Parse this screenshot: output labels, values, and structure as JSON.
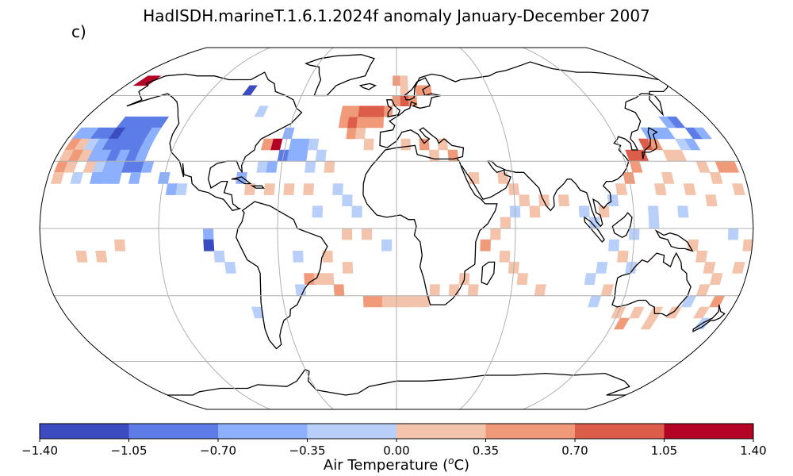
{
  "title": "HadISDH.marineT.1.6.1.2024f anomaly January-December 2007",
  "panel_label": "c)",
  "colorbar": {
    "label_main": "Air Temperature (",
    "label_sup": "o",
    "label_unit": "C)",
    "ticks": [
      "−1.40",
      "−1.05",
      "−0.70",
      "−0.35",
      "0.00",
      "0.35",
      "0.70",
      "1.05",
      "1.40"
    ],
    "tick_values": [
      -1.4,
      -1.05,
      -0.7,
      -0.35,
      0.0,
      0.35,
      0.7,
      1.05,
      1.4
    ],
    "bins": [
      {
        "lo": -1.4,
        "hi": -1.05,
        "color": "#3b4cc0"
      },
      {
        "lo": -1.05,
        "hi": -0.7,
        "color": "#5d7ce6"
      },
      {
        "lo": -0.7,
        "hi": -0.35,
        "color": "#8caffe"
      },
      {
        "lo": -0.35,
        "hi": 0.0,
        "color": "#b8d0f9"
      },
      {
        "lo": 0.0,
        "hi": 0.35,
        "color": "#f4c3ab"
      },
      {
        "lo": 0.35,
        "hi": 0.7,
        "color": "#f09a7a"
      },
      {
        "lo": 0.7,
        "hi": 1.05,
        "color": "#dc5d4a"
      },
      {
        "lo": 1.05,
        "hi": 1.4,
        "color": "#b40426"
      }
    ]
  },
  "projection": "Robinson",
  "graticule": {
    "lon_step": 60,
    "lat_step": 30
  },
  "anomaly_cells": [
    {
      "lon": -155,
      "lat": 47.5,
      "v": -0.9
    },
    {
      "lon": -150,
      "lat": 47.5,
      "v": -1.0
    },
    {
      "lon": -145,
      "lat": 47.5,
      "v": -1.0
    },
    {
      "lon": -140,
      "lat": 47.5,
      "v": -0.9
    },
    {
      "lon": -135,
      "lat": 47.5,
      "v": -0.8
    },
    {
      "lon": -175,
      "lat": 42.5,
      "v": -0.6
    },
    {
      "lon": -170,
      "lat": 42.5,
      "v": -0.7
    },
    {
      "lon": -165,
      "lat": 42.5,
      "v": -0.8
    },
    {
      "lon": -160,
      "lat": 42.5,
      "v": -0.9
    },
    {
      "lon": -155,
      "lat": 42.5,
      "v": -1.2
    },
    {
      "lon": -150,
      "lat": 42.5,
      "v": -1.0
    },
    {
      "lon": -145,
      "lat": 42.5,
      "v": -0.9
    },
    {
      "lon": -140,
      "lat": 42.5,
      "v": -0.8
    },
    {
      "lon": -135,
      "lat": 42.5,
      "v": -0.7
    },
    {
      "lon": -175,
      "lat": 37.5,
      "v": 0.4
    },
    {
      "lon": -170,
      "lat": 37.5,
      "v": 0.3
    },
    {
      "lon": -165,
      "lat": 37.5,
      "v": -0.3
    },
    {
      "lon": -160,
      "lat": 37.5,
      "v": -0.6
    },
    {
      "lon": -155,
      "lat": 37.5,
      "v": -0.9
    },
    {
      "lon": -150,
      "lat": 37.5,
      "v": -0.8
    },
    {
      "lon": -145,
      "lat": 37.5,
      "v": -0.9
    },
    {
      "lon": -140,
      "lat": 37.5,
      "v": -0.8
    },
    {
      "lon": -135,
      "lat": 37.5,
      "v": -0.6
    },
    {
      "lon": -175,
      "lat": 32.5,
      "v": 0.3
    },
    {
      "lon": -170,
      "lat": 32.5,
      "v": 0.4
    },
    {
      "lon": -165,
      "lat": 32.5,
      "v": 0.2
    },
    {
      "lon": -160,
      "lat": 32.5,
      "v": -0.4
    },
    {
      "lon": -155,
      "lat": 32.5,
      "v": -0.6
    },
    {
      "lon": -150,
      "lat": 32.5,
      "v": -0.8
    },
    {
      "lon": -145,
      "lat": 32.5,
      "v": -0.7
    },
    {
      "lon": -140,
      "lat": 32.5,
      "v": -0.9
    },
    {
      "lon": -135,
      "lat": 32.5,
      "v": -0.6
    },
    {
      "lon": -175,
      "lat": 27.5,
      "v": 0.5
    },
    {
      "lon": -170,
      "lat": 27.5,
      "v": 0.3
    },
    {
      "lon": -160,
      "lat": 27.5,
      "v": 0.2
    },
    {
      "lon": -155,
      "lat": 27.5,
      "v": -0.3
    },
    {
      "lon": -150,
      "lat": 27.5,
      "v": -0.5
    },
    {
      "lon": -145,
      "lat": 27.5,
      "v": -0.6
    },
    {
      "lon": -140,
      "lat": 27.5,
      "v": -0.9
    },
    {
      "lon": -135,
      "lat": 27.5,
      "v": -0.8
    },
    {
      "lon": -130,
      "lat": 27.5,
      "v": -0.5
    },
    {
      "lon": -175,
      "lat": 22.5,
      "v": 0.2
    },
    {
      "lon": -165,
      "lat": 22.5,
      "v": -0.2
    },
    {
      "lon": -155,
      "lat": 22.5,
      "v": -0.4
    },
    {
      "lon": -150,
      "lat": 22.5,
      "v": -0.5
    },
    {
      "lon": -145,
      "lat": 22.5,
      "v": -0.6
    },
    {
      "lon": -135,
      "lat": 22.5,
      "v": -0.5
    },
    {
      "lon": -120,
      "lat": 22.5,
      "v": -0.5
    },
    {
      "lon": -115,
      "lat": 17.5,
      "v": -0.4
    },
    {
      "lon": -110,
      "lat": 17.5,
      "v": -0.2
    },
    {
      "lon": -95,
      "lat": -2.5,
      "v": -0.6
    },
    {
      "lon": -95,
      "lat": -7.5,
      "v": -1.2
    },
    {
      "lon": -90,
      "lat": -12.5,
      "v": -0.3
    },
    {
      "lon": -85,
      "lat": -17.5,
      "v": -0.2
    },
    {
      "lon": -65,
      "lat": 37.5,
      "v": 1.2
    },
    {
      "lon": -70,
      "lat": 37.5,
      "v": 0.4
    },
    {
      "lon": -60,
      "lat": 42.5,
      "v": -0.6
    },
    {
      "lon": -55,
      "lat": 37.5,
      "v": -0.7
    },
    {
      "lon": -50,
      "lat": 37.5,
      "v": -0.6
    },
    {
      "lon": -45,
      "lat": 37.5,
      "v": -0.3
    },
    {
      "lon": -60,
      "lat": 32.5,
      "v": -0.8
    },
    {
      "lon": -55,
      "lat": 32.5,
      "v": -0.6
    },
    {
      "lon": -50,
      "lat": 32.5,
      "v": -0.4
    },
    {
      "lon": -40,
      "lat": 32.5,
      "v": -0.3
    },
    {
      "lon": -70,
      "lat": 27.5,
      "v": -0.3
    },
    {
      "lon": -65,
      "lat": 27.5,
      "v": -0.5
    },
    {
      "lon": -45,
      "lat": 27.5,
      "v": -0.2
    },
    {
      "lon": -35,
      "lat": 27.5,
      "v": 0.2
    },
    {
      "lon": -80,
      "lat": 22.5,
      "v": -0.4
    },
    {
      "lon": -75,
      "lat": 17.5,
      "v": 0.2
    },
    {
      "lon": -65,
      "lat": 17.5,
      "v": 0.3
    },
    {
      "lon": -55,
      "lat": 17.5,
      "v": 0.2
    },
    {
      "lon": -45,
      "lat": 17.5,
      "v": 0.2
    },
    {
      "lon": -30,
      "lat": 17.5,
      "v": -0.2
    },
    {
      "lon": -25,
      "lat": 12.5,
      "v": -0.3
    },
    {
      "lon": -20,
      "lat": 7.5,
      "v": -0.2
    },
    {
      "lon": -40,
      "lat": 7.5,
      "v": -0.3
    },
    {
      "lon": -25,
      "lat": -2.5,
      "v": 0.2
    },
    {
      "lon": -15,
      "lat": -2.5,
      "v": 0.2
    },
    {
      "lon": -5,
      "lat": -7.5,
      "v": -0.2
    },
    {
      "lon": -25,
      "lat": 42.5,
      "v": 0.4
    },
    {
      "lon": -20,
      "lat": 42.5,
      "v": 0.3
    },
    {
      "lon": -15,
      "lat": 37.5,
      "v": 0.2
    },
    {
      "lon": -30,
      "lat": 47.5,
      "v": 0.6
    },
    {
      "lon": -25,
      "lat": 47.5,
      "v": 0.7
    },
    {
      "lon": -20,
      "lat": 47.5,
      "v": 0.5
    },
    {
      "lon": -15,
      "lat": 47.5,
      "v": 0.4
    },
    {
      "lon": -10,
      "lat": 47.5,
      "v": 0.5
    },
    {
      "lon": -5,
      "lat": 52.5,
      "v": 0.6
    },
    {
      "lon": -20,
      "lat": 52.5,
      "v": 0.8
    },
    {
      "lon": -15,
      "lat": 52.5,
      "v": 0.9
    },
    {
      "lon": -10,
      "lat": 52.5,
      "v": 0.8
    },
    {
      "lon": -25,
      "lat": 52.5,
      "v": 0.6
    },
    {
      "lon": -30,
      "lat": 52.5,
      "v": 0.4
    },
    {
      "lon": 0,
      "lat": 57.5,
      "v": 0.6
    },
    {
      "lon": 5,
      "lat": 57.5,
      "v": 0.8
    },
    {
      "lon": 10,
      "lat": 57.5,
      "v": 0.5
    },
    {
      "lon": 15,
      "lat": 62.5,
      "v": 0.6
    },
    {
      "lon": 20,
      "lat": 62.5,
      "v": 0.4
    },
    {
      "lon": 5,
      "lat": 62.5,
      "v": 0.3
    },
    {
      "lon": 5,
      "lat": 37.5,
      "v": 0.3
    },
    {
      "lon": 15,
      "lat": 37.5,
      "v": 0.4
    },
    {
      "lon": 25,
      "lat": 37.5,
      "v": 0.3
    },
    {
      "lon": 30,
      "lat": 32.5,
      "v": 0.4
    },
    {
      "lon": 20,
      "lat": 32.5,
      "v": 0.2
    },
    {
      "lon": 40,
      "lat": 22.5,
      "v": 0.3
    },
    {
      "lon": 55,
      "lat": 22.5,
      "v": 0.2
    },
    {
      "lon": 60,
      "lat": 17.5,
      "v": 0.3
    },
    {
      "lon": 65,
      "lat": 12.5,
      "v": 0.2
    },
    {
      "lon": 70,
      "lat": 7.5,
      "v": 0.3
    },
    {
      "lon": 75,
      "lat": 12.5,
      "v": 0.2
    },
    {
      "lon": 60,
      "lat": 7.5,
      "v": -0.2
    },
    {
      "lon": 55,
      "lat": 2.5,
      "v": 0.3
    },
    {
      "lon": 50,
      "lat": -2.5,
      "v": 0.2
    },
    {
      "lon": 45,
      "lat": -7.5,
      "v": 0.4
    },
    {
      "lon": 55,
      "lat": -12.5,
      "v": 0.3
    },
    {
      "lon": 60,
      "lat": -17.5,
      "v": 0.2
    },
    {
      "lon": 65,
      "lat": -22.5,
      "v": 0.3
    },
    {
      "lon": 75,
      "lat": -27.5,
      "v": 0.2
    },
    {
      "lon": 85,
      "lat": 12.5,
      "v": 0.3
    },
    {
      "lon": 95,
      "lat": 7.5,
      "v": -0.3
    },
    {
      "lon": 100,
      "lat": 2.5,
      "v": -0.2
    },
    {
      "lon": 105,
      "lat": 7.5,
      "v": 0.2
    },
    {
      "lon": 110,
      "lat": 12.5,
      "v": -0.3
    },
    {
      "lon": 115,
      "lat": 17.5,
      "v": 0.3
    },
    {
      "lon": 120,
      "lat": 22.5,
      "v": 0.5
    },
    {
      "lon": 125,
      "lat": 27.5,
      "v": 0.4
    },
    {
      "lon": 125,
      "lat": 32.5,
      "v": 0.8
    },
    {
      "lon": 130,
      "lat": 32.5,
      "v": 0.9
    },
    {
      "lon": 135,
      "lat": 37.5,
      "v": 0.8
    },
    {
      "lon": 140,
      "lat": 37.5,
      "v": 0.5
    },
    {
      "lon": 140,
      "lat": 42.5,
      "v": -0.5
    },
    {
      "lon": 145,
      "lat": 42.5,
      "v": -0.6
    },
    {
      "lon": 150,
      "lat": 42.5,
      "v": -0.5
    },
    {
      "lon": 155,
      "lat": 47.5,
      "v": -0.7
    },
    {
      "lon": 160,
      "lat": 47.5,
      "v": -0.9
    },
    {
      "lon": 165,
      "lat": 42.5,
      "v": -0.8
    },
    {
      "lon": 170,
      "lat": 42.5,
      "v": -0.6
    },
    {
      "lon": 160,
      "lat": 37.5,
      "v": -0.5
    },
    {
      "lon": 155,
      "lat": 37.5,
      "v": -0.3
    },
    {
      "lon": 145,
      "lat": 32.5,
      "v": 0.3
    },
    {
      "lon": 150,
      "lat": 32.5,
      "v": 0.2
    },
    {
      "lon": 160,
      "lat": 27.5,
      "v": 0.3
    },
    {
      "lon": 170,
      "lat": 27.5,
      "v": 0.4
    },
    {
      "lon": 175,
      "lat": 27.5,
      "v": 0.5
    },
    {
      "lon": 165,
      "lat": 22.5,
      "v": 0.2
    },
    {
      "lon": 140,
      "lat": 22.5,
      "v": 0.3
    },
    {
      "lon": 135,
      "lat": 17.5,
      "v": 0.2
    },
    {
      "lon": 150,
      "lat": 17.5,
      "v": 0.3
    },
    {
      "lon": 160,
      "lat": 12.5,
      "v": 0.3
    },
    {
      "lon": 175,
      "lat": 17.5,
      "v": 0.2
    },
    {
      "lon": 145,
      "lat": 7.5,
      "v": -0.2
    },
    {
      "lon": 130,
      "lat": 7.5,
      "v": -0.3
    },
    {
      "lon": 130,
      "lat": 2.5,
      "v": -0.2
    },
    {
      "lon": 120,
      "lat": -2.5,
      "v": -0.3
    },
    {
      "lon": 110,
      "lat": -7.5,
      "v": -0.2
    },
    {
      "lon": 115,
      "lat": -12.5,
      "v": 0.2
    },
    {
      "lon": 120,
      "lat": -17.5,
      "v": -0.3
    },
    {
      "lon": 105,
      "lat": -17.5,
      "v": -0.2
    },
    {
      "lon": 100,
      "lat": -22.5,
      "v": -0.3
    },
    {
      "lon": 110,
      "lat": -27.5,
      "v": 0.3
    },
    {
      "lon": 105,
      "lat": -32.5,
      "v": -0.2
    },
    {
      "lon": 120,
      "lat": -37.5,
      "v": 0.3
    },
    {
      "lon": 130,
      "lat": -37.5,
      "v": 0.3
    },
    {
      "lon": 140,
      "lat": -37.5,
      "v": 0.2
    },
    {
      "lon": 150,
      "lat": -37.5,
      "v": 0.3
    },
    {
      "lon": 155,
      "lat": -32.5,
      "v": -0.3
    },
    {
      "lon": 160,
      "lat": -27.5,
      "v": 0.2
    },
    {
      "lon": 165,
      "lat": -22.5,
      "v": 0.3
    },
    {
      "lon": 175,
      "lat": -17.5,
      "v": 0.3
    },
    {
      "lon": 170,
      "lat": -32.5,
      "v": 0.4
    },
    {
      "lon": 165,
      "lat": -37.5,
      "v": 0.2
    },
    {
      "lon": 170,
      "lat": -42.5,
      "v": -0.3
    },
    {
      "lon": 150,
      "lat": -7.5,
      "v": 0.2
    },
    {
      "lon": 155,
      "lat": -12.5,
      "v": 0.3
    },
    {
      "lon": 160,
      "lat": -17.5,
      "v": 0.2
    },
    {
      "lon": 125,
      "lat": -42.5,
      "v": 0.6
    },
    {
      "lon": 140,
      "lat": -42.5,
      "v": 0.3
    },
    {
      "lon": -160,
      "lat": -12.5,
      "v": 0.2
    },
    {
      "lon": -150,
      "lat": -12.5,
      "v": 0.3
    },
    {
      "lon": -140,
      "lat": -7.5,
      "v": 0.2
    },
    {
      "lon": -45,
      "lat": -22.5,
      "v": 0.4
    },
    {
      "lon": -40,
      "lat": -22.5,
      "v": 0.3
    },
    {
      "lon": -35,
      "lat": -22.5,
      "v": 0.2
    },
    {
      "lon": -30,
      "lat": -27.5,
      "v": 0.4
    },
    {
      "lon": -50,
      "lat": -27.5,
      "v": -0.2
    },
    {
      "lon": -15,
      "lat": -32.5,
      "v": 0.5
    },
    {
      "lon": -10,
      "lat": -32.5,
      "v": 0.4
    },
    {
      "lon": -5,
      "lat": -32.5,
      "v": 0.3
    },
    {
      "lon": 0,
      "lat": -32.5,
      "v": 0.3
    },
    {
      "lon": 5,
      "lat": -32.5,
      "v": 0.3
    },
    {
      "lon": 10,
      "lat": -32.5,
      "v": 0.2
    },
    {
      "lon": 15,
      "lat": -32.5,
      "v": 0.3
    },
    {
      "lon": 20,
      "lat": -27.5,
      "v": 0.2
    },
    {
      "lon": 30,
      "lat": -27.5,
      "v": 0.3
    },
    {
      "lon": 35,
      "lat": -22.5,
      "v": 0.2
    },
    {
      "lon": 40,
      "lat": -27.5,
      "v": 0.2
    },
    {
      "lon": -25,
      "lat": -17.5,
      "v": 0.2
    },
    {
      "lon": -35,
      "lat": -12.5,
      "v": 0.2
    },
    {
      "lon": -50,
      "lat": -12.5,
      "v": -0.2
    },
    {
      "lon": -75,
      "lat": -37.5,
      "v": -0.3
    },
    {
      "lon": 170,
      "lat": -2.5,
      "v": -0.2
    },
    {
      "lon": 178,
      "lat": -7.5,
      "v": 0.3
    },
    {
      "lon": -172,
      "lat": 67.5,
      "v": 1.2
    },
    {
      "lon": -168,
      "lat": 67.5,
      "v": 1.2
    },
    {
      "lon": -95,
      "lat": 62.5,
      "v": -1.3
    },
    {
      "lon": -80,
      "lat": 52.5,
      "v": -0.3
    },
    {
      "lon": 0,
      "lat": 67.5,
      "v": 0.4
    },
    {
      "lon": 5,
      "lat": 67.5,
      "v": 0.3
    }
  ]
}
